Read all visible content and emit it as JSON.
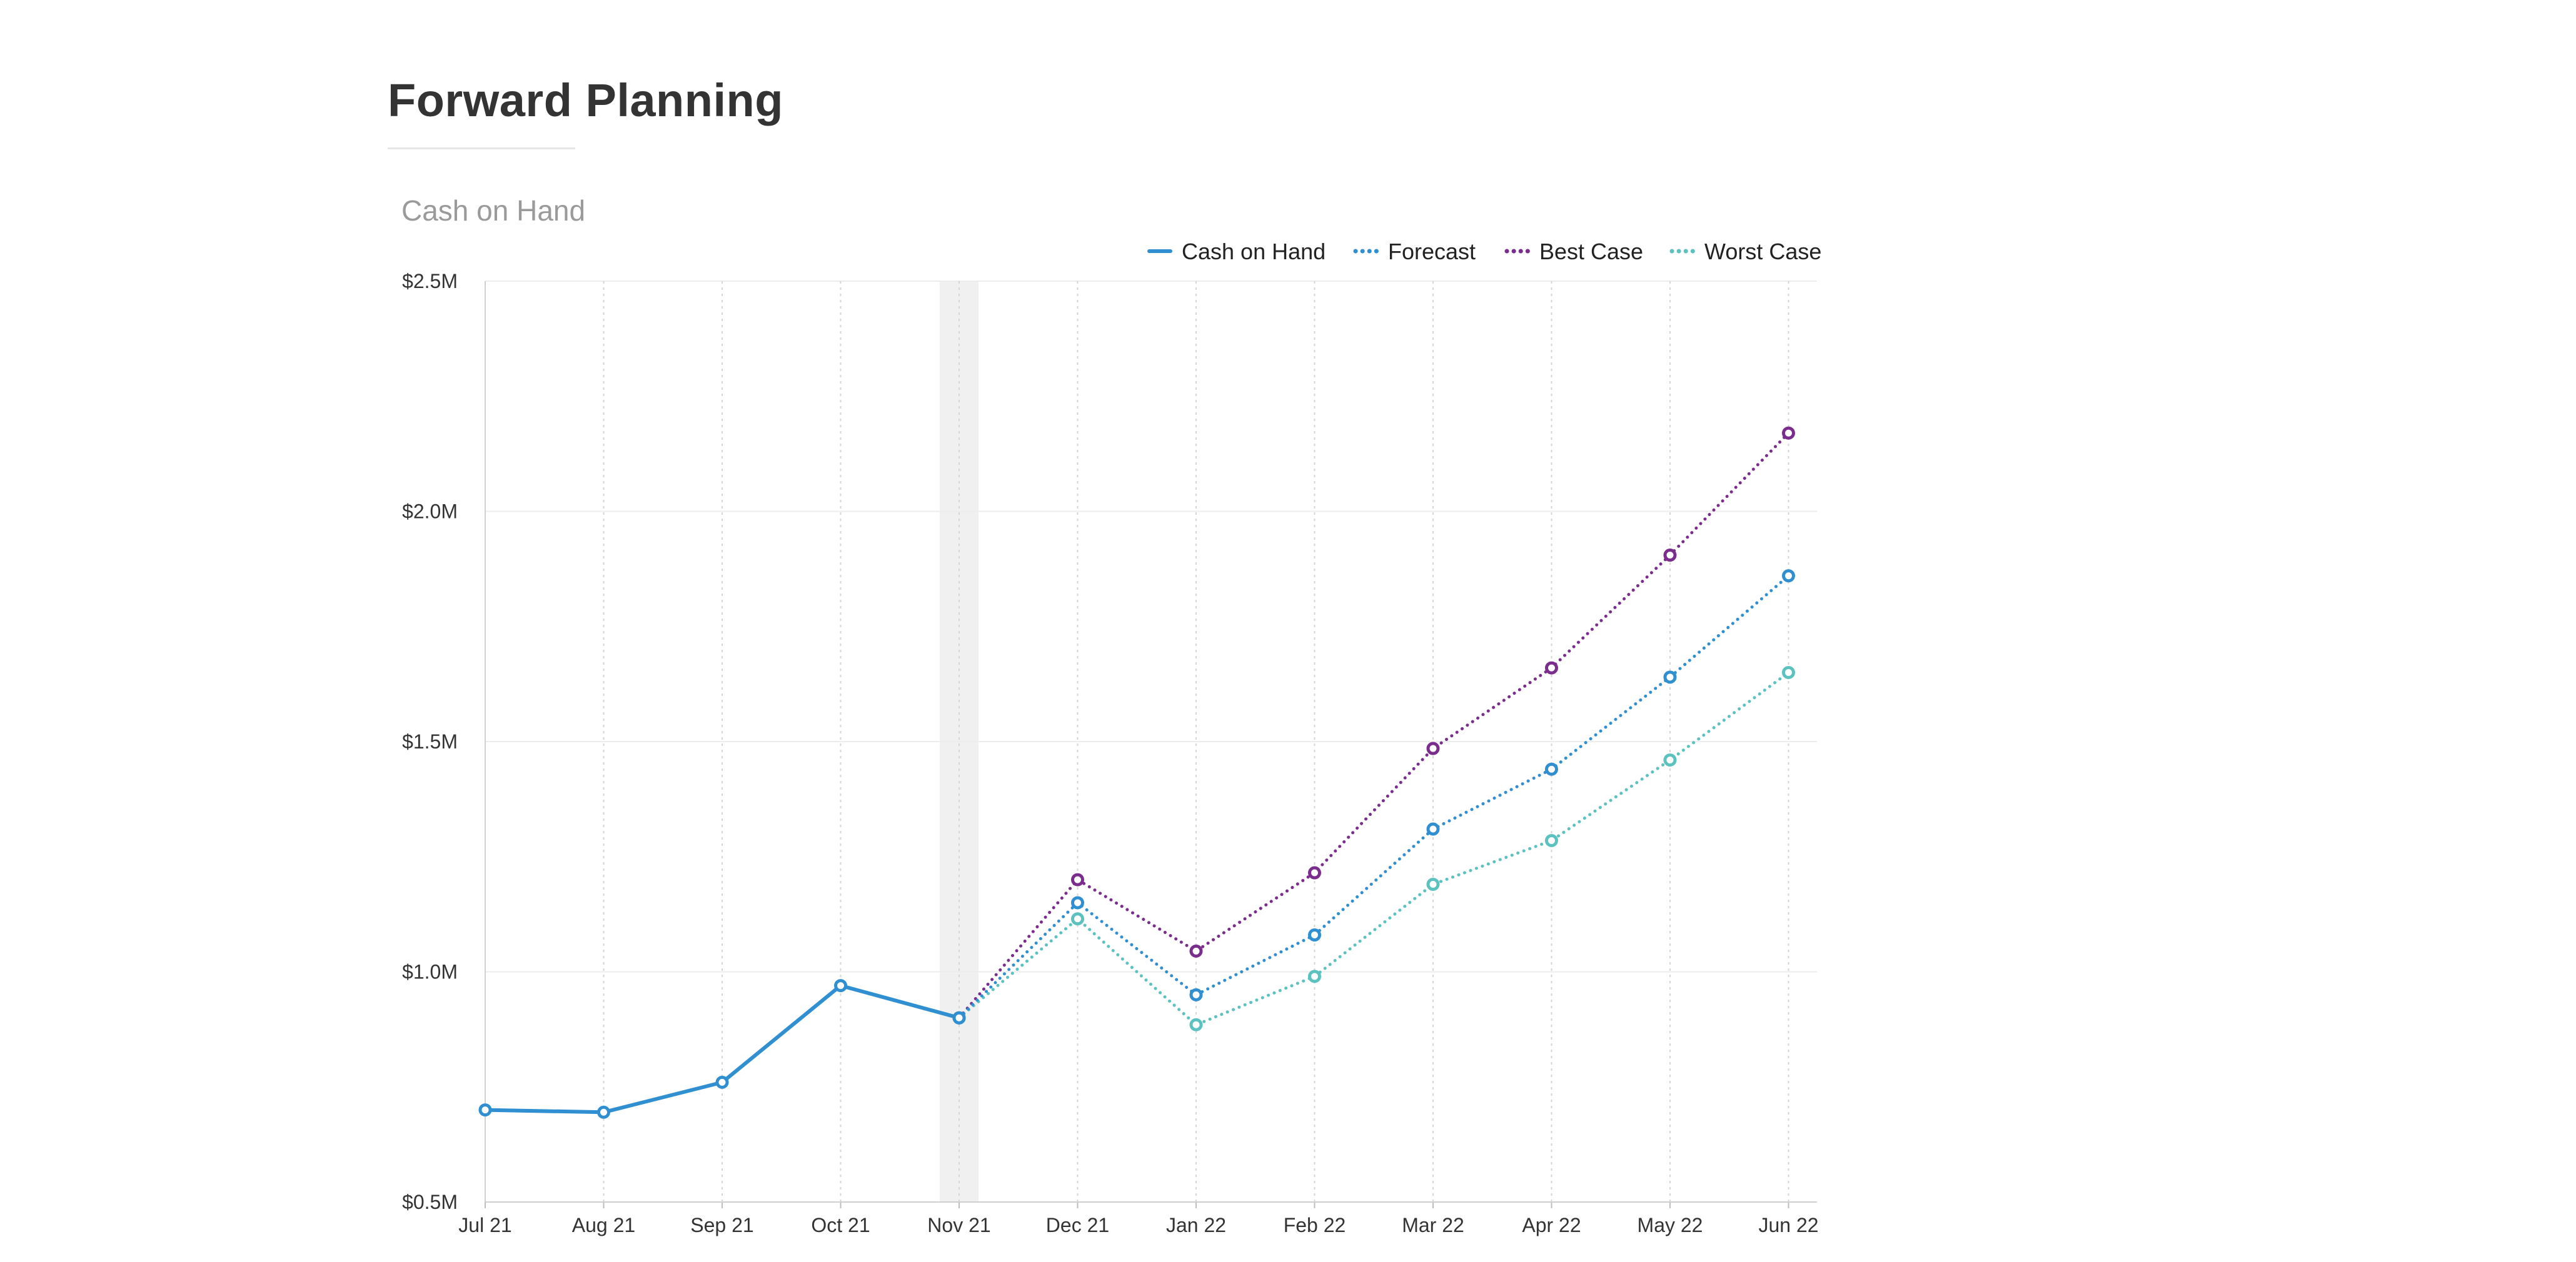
{
  "page": {
    "title": "Forward Planning"
  },
  "chart_data": {
    "type": "line",
    "title": "Cash on Hand",
    "xlabel": "",
    "ylabel": "",
    "categories": [
      "Jul 21",
      "Aug 21",
      "Sep 21",
      "Oct 21",
      "Nov 21",
      "Dec 21",
      "Jan 22",
      "Feb 22",
      "Mar 22",
      "Apr 22",
      "May 22",
      "Jun 22"
    ],
    "y_ticks": [
      {
        "value": 500000,
        "label": "$0.5M"
      },
      {
        "value": 1000000,
        "label": "$1.0M"
      },
      {
        "value": 1500000,
        "label": "$1.5M"
      },
      {
        "value": 2000000,
        "label": "$2.0M"
      },
      {
        "value": 2500000,
        "label": "$2.5M"
      }
    ],
    "ylim": [
      500000,
      2500000
    ],
    "grid": true,
    "legend_position": "top-right",
    "highlight_category": "Nov 21",
    "series": [
      {
        "name": "Cash on Hand",
        "style": "solid",
        "color": "#2f8fd0",
        "values": [
          700000,
          695000,
          760000,
          970000,
          900000,
          null,
          null,
          null,
          null,
          null,
          null,
          null
        ]
      },
      {
        "name": "Forecast",
        "style": "dotted",
        "color": "#2f8fd0",
        "values": [
          null,
          null,
          null,
          null,
          900000,
          1150000,
          950000,
          1080000,
          1310000,
          1440000,
          1640000,
          1860000
        ]
      },
      {
        "name": "Best Case",
        "style": "dotted",
        "color": "#7b2d8e",
        "values": [
          null,
          null,
          null,
          null,
          900000,
          1200000,
          1045000,
          1215000,
          1485000,
          1660000,
          1905000,
          2170000
        ]
      },
      {
        "name": "Worst Case",
        "style": "dotted",
        "color": "#5cc2c0",
        "values": [
          null,
          null,
          null,
          null,
          900000,
          1115000,
          885000,
          990000,
          1190000,
          1285000,
          1460000,
          1650000
        ]
      }
    ]
  }
}
